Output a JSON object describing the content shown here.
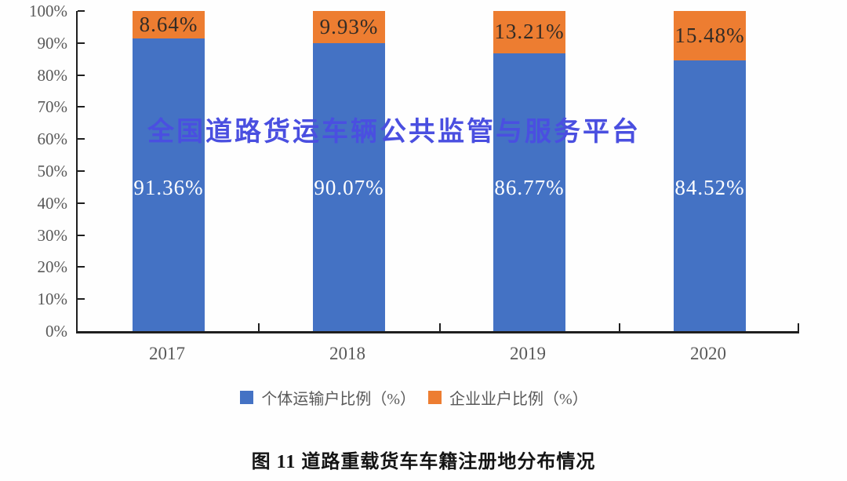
{
  "watermark": "全国道路货运车辆公共监管与服务平台",
  "caption": "图 11 道路重载货车车籍注册地分布情况",
  "colors": {
    "individual_series": "#4472C4",
    "enterprise_series": "#ED7D31",
    "watermark_text": "#4A4FE0",
    "axis_line": "#1F1F1F",
    "axis_label": "#595959",
    "enterprise_value_label": "#332C26",
    "individual_value_label": "#FFFFFF"
  },
  "chart_data": {
    "type": "bar",
    "stacked": true,
    "title": "图 11 道路重载货车车籍注册地分布情况",
    "xlabel": "",
    "ylabel": "",
    "categories": [
      "2017",
      "2018",
      "2019",
      "2020"
    ],
    "series": [
      {
        "name": "个体运输户比例（%）",
        "color": "#4472C4",
        "values": [
          91.36,
          90.07,
          86.77,
          84.52
        ],
        "labels": [
          "91.36%",
          "90.07%",
          "86.77%",
          "84.52%"
        ]
      },
      {
        "name": "企业业户比例（%）",
        "color": "#ED7D31",
        "values": [
          8.64,
          9.93,
          13.21,
          15.48
        ],
        "labels": [
          "8.64%",
          "9.93%",
          "13.21%",
          "15.48%"
        ]
      }
    ],
    "ylim": [
      0,
      100
    ],
    "y_ticks": [
      "0%",
      "10%",
      "20%",
      "30%",
      "40%",
      "50%",
      "60%",
      "70%",
      "80%",
      "90%",
      "100%"
    ],
    "grid": false,
    "legend_position": "bottom"
  }
}
